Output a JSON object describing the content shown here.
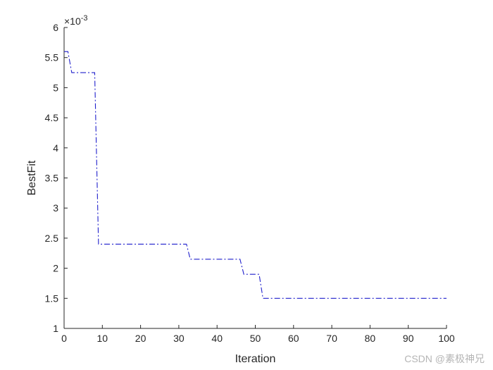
{
  "chart_data": {
    "type": "line",
    "xlabel": "Iteration",
    "ylabel": "BestFit",
    "y_exponent_label": "×10",
    "y_exponent_value": "-3",
    "xlim": [
      0,
      100
    ],
    "ylim": [
      1,
      6
    ],
    "xticks": [
      "0",
      "10",
      "20",
      "30",
      "40",
      "50",
      "60",
      "70",
      "80",
      "90",
      "100"
    ],
    "yticks": [
      "1",
      "1.5",
      "2",
      "2.5",
      "3",
      "3.5",
      "4",
      "4.5",
      "5",
      "5.5",
      "6"
    ],
    "grid": false,
    "line_style": "dash-dot",
    "series": [
      {
        "color": "#1f1fcc",
        "x": [
          0,
          1,
          2,
          8,
          9,
          32,
          33,
          46,
          47,
          51,
          52,
          100
        ],
        "y": [
          5.6,
          5.6,
          5.25,
          5.25,
          2.4,
          2.4,
          2.15,
          2.15,
          1.9,
          1.9,
          1.5,
          1.5
        ]
      }
    ]
  },
  "watermark": "CSDN @素极神兄"
}
